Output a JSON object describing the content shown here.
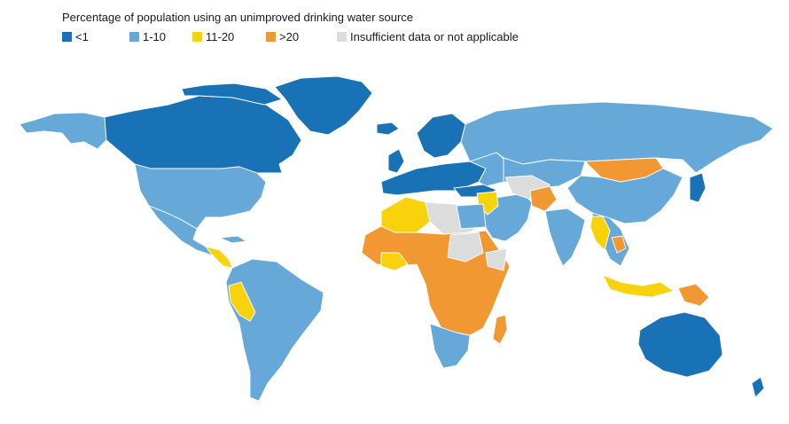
{
  "title": "Percentage of population using an unimproved drinking water source",
  "legend": [
    {
      "label": "<1",
      "color": "#1a72b6"
    },
    {
      "label": "1-10",
      "color": "#66a9d9"
    },
    {
      "label": "11-20",
      "color": "#f8d30b"
    },
    {
      "label": ">20",
      "color": "#f19833"
    },
    {
      "label": "Insufficient data or not applicable",
      "color": "#dcdcdc"
    }
  ],
  "colors": {
    "lt1": "#1a72b6",
    "b1_10": "#66a9d9",
    "b11_20": "#f8d30b",
    "gt20": "#f19833",
    "nodata": "#dcdcdc"
  }
}
